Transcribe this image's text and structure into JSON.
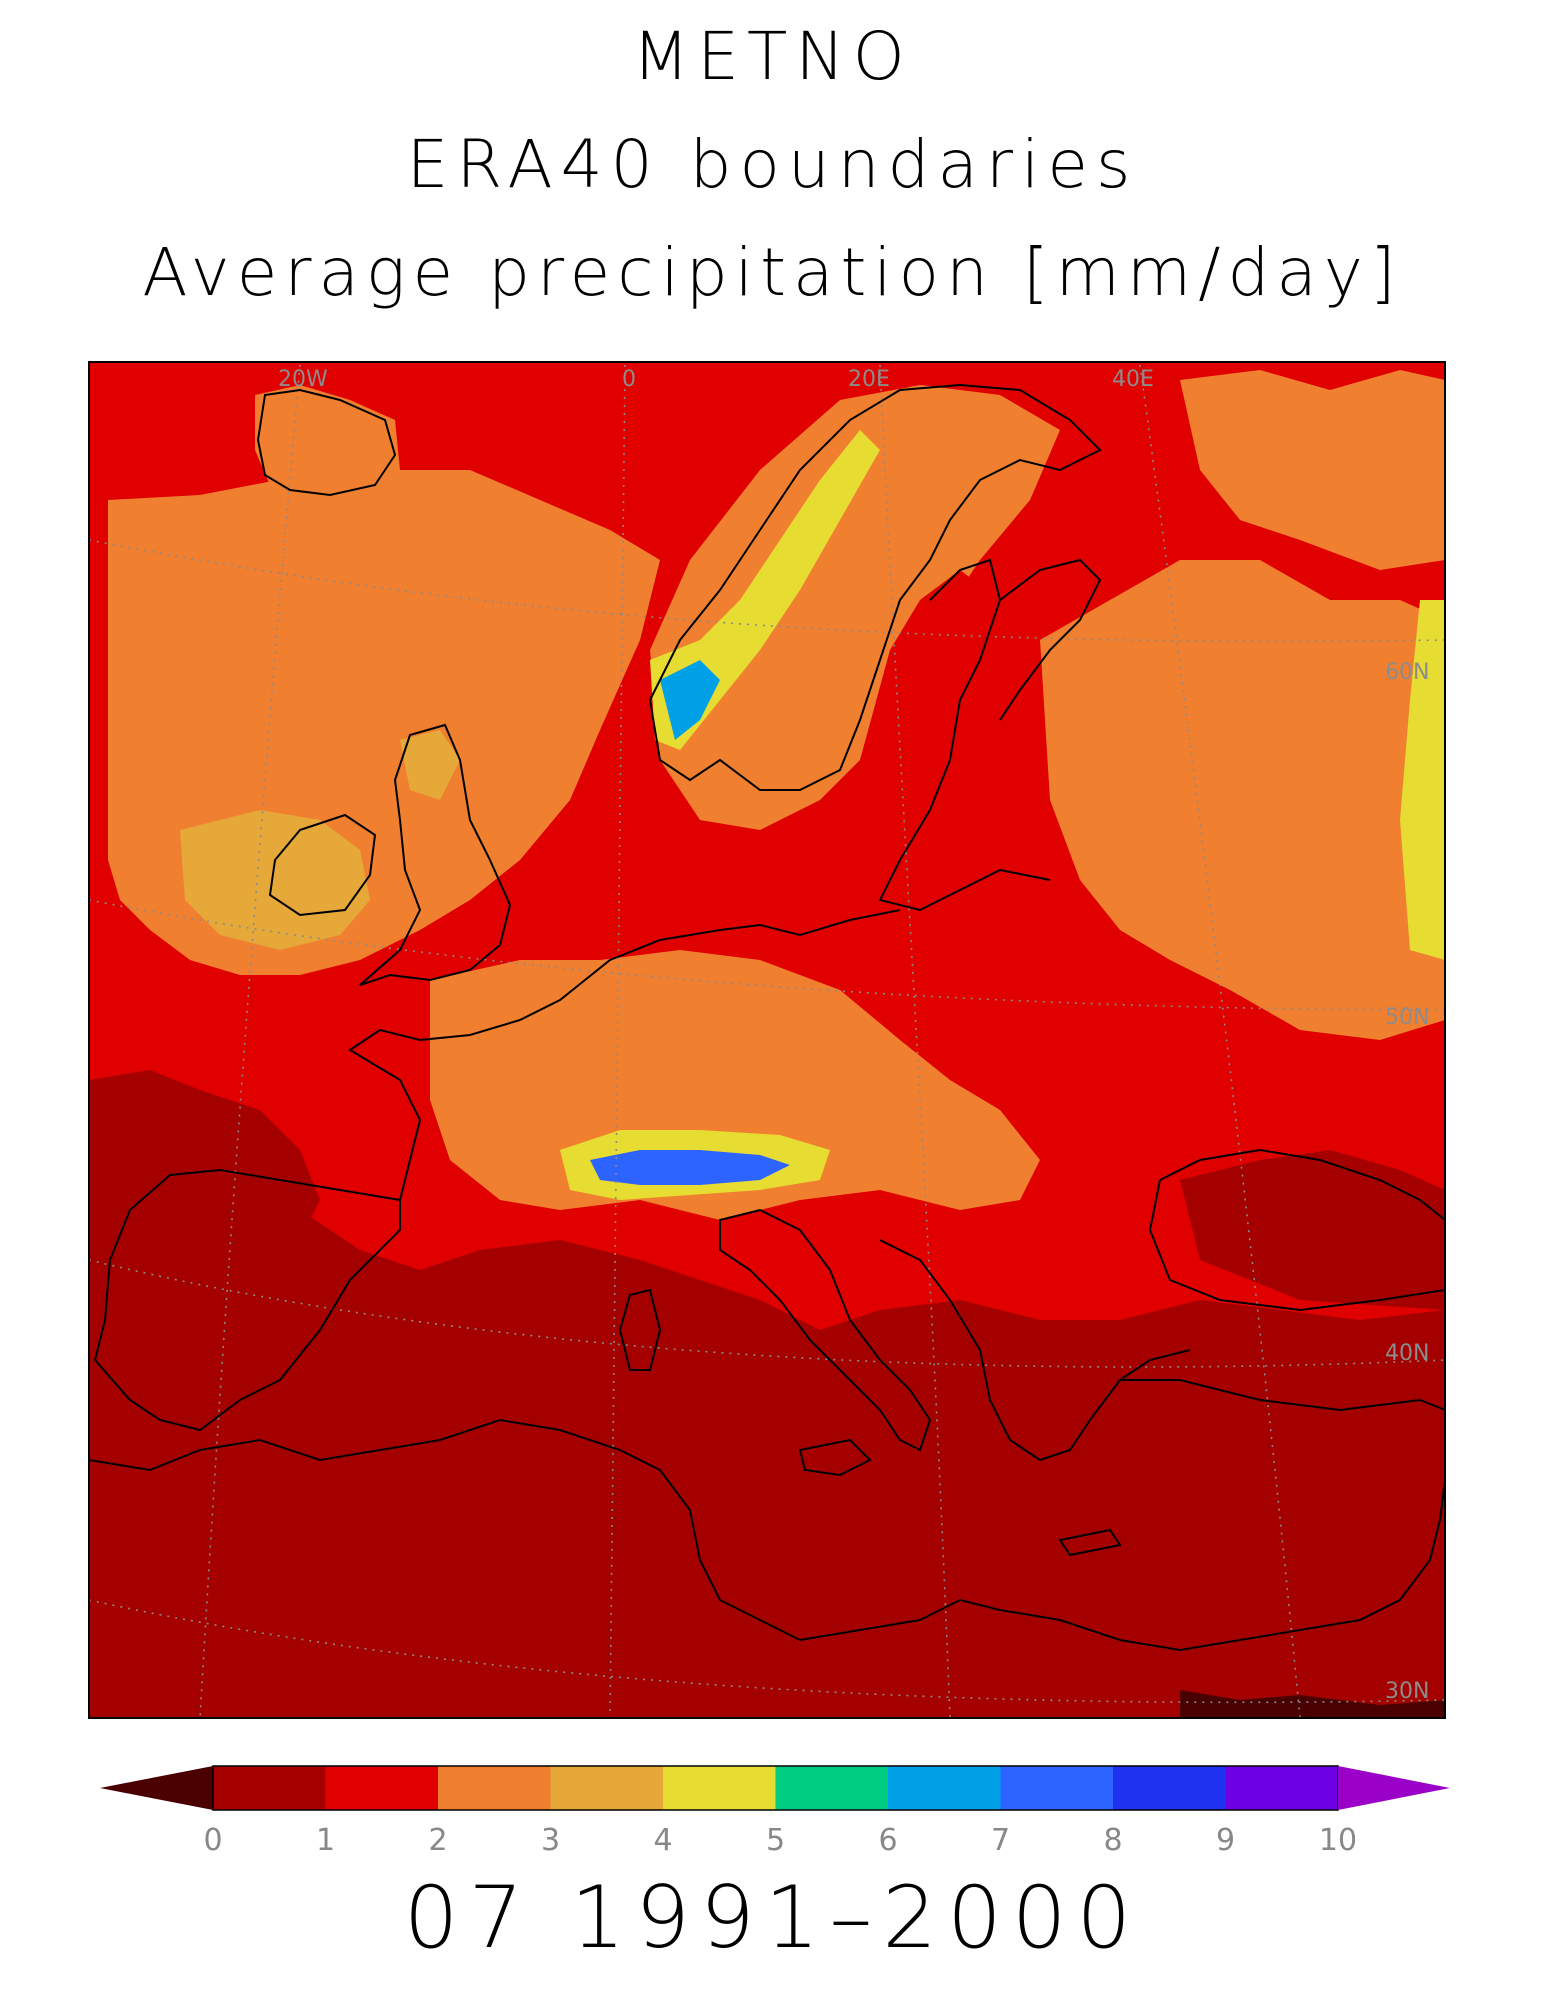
{
  "title": {
    "line1": "METNO",
    "line2": "ERA40 boundaries",
    "line3": "Average precipitation [mm/day]"
  },
  "map": {
    "longitude_labels": [
      "20W",
      "0",
      "20E",
      "40E"
    ],
    "latitude_labels": [
      "60N",
      "50N",
      "40N",
      "30N"
    ],
    "region": "Europe and Mediterranean",
    "field": "average precipitation"
  },
  "colorbar": {
    "tick_labels": [
      "0",
      "1",
      "2",
      "3",
      "4",
      "5",
      "6",
      "7",
      "8",
      "9",
      "10"
    ],
    "under_color": "#4a0000",
    "over_color": "#9a00c8",
    "bin_colors": [
      "#a50000",
      "#e10000",
      "#f08030",
      "#e6a838",
      "#e6dc32",
      "#00cd82",
      "#00a0e6",
      "#2d64ff",
      "#1e32f0",
      "#6e00e6"
    ]
  },
  "period": "07 1991–2000"
}
